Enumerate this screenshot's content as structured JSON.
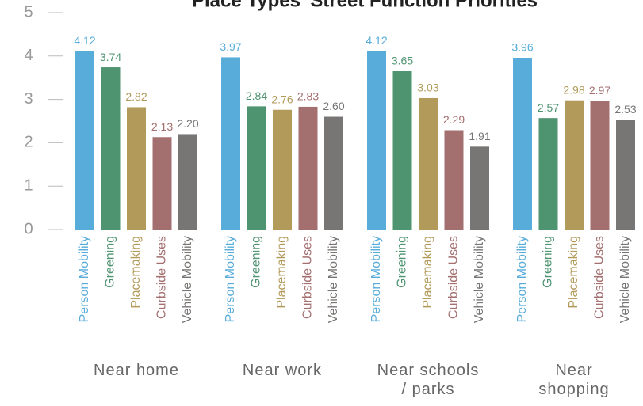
{
  "chart_data": {
    "type": "bar",
    "title": "Place Types' Street Function Priorities",
    "categories": [
      "Near home",
      "Near work",
      "Near schools / parks",
      "Near shopping"
    ],
    "series": [
      {
        "name": "Person Mobility",
        "color": "#58acd9",
        "values": [
          4.12,
          3.97,
          4.12,
          3.96
        ],
        "value_labels": [
          "4.12",
          "3.97",
          "4.12",
          "3.96"
        ]
      },
      {
        "name": "Greening",
        "color": "#4f9471",
        "values": [
          3.74,
          2.84,
          3.65,
          2.57
        ],
        "value_labels": [
          "3.74",
          "2.84",
          "3.65",
          "2.57"
        ]
      },
      {
        "name": "Placemaking",
        "color": "#b29a5a",
        "values": [
          2.82,
          2.76,
          3.03,
          2.98
        ],
        "value_labels": [
          "2.82",
          "2.76",
          "3.03",
          "2.98"
        ]
      },
      {
        "name": "Curbside Uses",
        "color": "#a36f6f",
        "values": [
          2.13,
          2.83,
          2.29,
          2.97
        ],
        "value_labels": [
          "2.13",
          "2.83",
          "2.29",
          "2.97"
        ]
      },
      {
        "name": "Vehicle Mobility",
        "color": "#787674",
        "values": [
          2.2,
          2.6,
          1.91,
          2.53
        ],
        "value_labels": [
          "2.20",
          "2.60",
          "1.91",
          "2.53"
        ]
      }
    ],
    "ylim": [
      0,
      5
    ],
    "yticks": [
      0,
      1,
      2,
      3,
      4,
      5
    ]
  }
}
